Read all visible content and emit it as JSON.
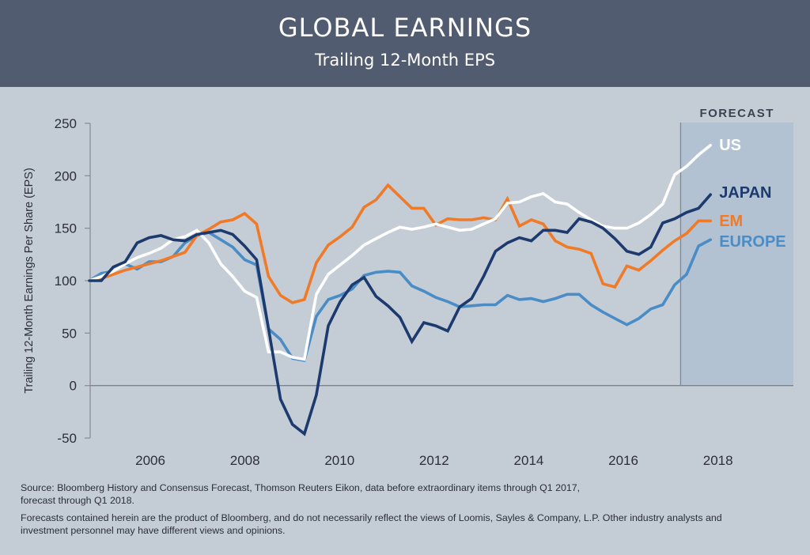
{
  "header": {
    "title": "GLOBAL EARNINGS",
    "subtitle": "Trailing 12-Month EPS"
  },
  "chart_data": {
    "type": "line",
    "title": "GLOBAL EARNINGS",
    "subtitle": "Trailing 12-Month EPS",
    "ylabel": "Trailing 12-Month Earnings Per Share (EPS)",
    "xlabel": "",
    "ylim": [
      -50,
      250
    ],
    "yticks": [
      -50,
      0,
      50,
      100,
      150,
      200,
      250
    ],
    "xtick_labels": [
      "2006",
      "2008",
      "2010",
      "2012",
      "2014",
      "2016",
      "2018"
    ],
    "grid": false,
    "forecast_label": "FORECAST",
    "forecast_from": 2017.5,
    "x": [
      "2005Q1",
      "2005Q2",
      "2005Q3",
      "2005Q4",
      "2006Q1",
      "2006Q2",
      "2006Q3",
      "2006Q4",
      "2007Q1",
      "2007Q2",
      "2007Q3",
      "2007Q4",
      "2008Q1",
      "2008Q2",
      "2008Q3",
      "2008Q4",
      "2009Q1",
      "2009Q2",
      "2009Q3",
      "2009Q4",
      "2010Q1",
      "2010Q2",
      "2010Q3",
      "2010Q4",
      "2011Q1",
      "2011Q2",
      "2011Q3",
      "2011Q4",
      "2012Q1",
      "2012Q2",
      "2012Q3",
      "2012Q4",
      "2013Q1",
      "2013Q2",
      "2013Q3",
      "2013Q4",
      "2014Q1",
      "2014Q2",
      "2014Q3",
      "2014Q4",
      "2015Q1",
      "2015Q2",
      "2015Q3",
      "2015Q4",
      "2016Q1",
      "2016Q2",
      "2016Q3",
      "2016Q4",
      "2017Q1",
      "2017Q2",
      "2017Q3",
      "2017Q4",
      "2018Q1"
    ],
    "series": [
      {
        "name": "US",
        "color": "#ffffff",
        "values": [
          100,
          104,
          109,
          116,
          122,
          126,
          131,
          139,
          142,
          148,
          136,
          116,
          104,
          90,
          84,
          32,
          32,
          27,
          25,
          87,
          106,
          115,
          124,
          134,
          140,
          146,
          151,
          149,
          151,
          154,
          151,
          148,
          149,
          154,
          159,
          174,
          175,
          180,
          183,
          175,
          173,
          165,
          158,
          152,
          150,
          150,
          155,
          163,
          173,
          201,
          209,
          220,
          229
        ]
      },
      {
        "name": "JAPAN",
        "color": "#1d3a6e",
        "values": [
          100,
          100,
          113,
          118,
          136,
          141,
          143,
          139,
          138,
          144,
          146,
          148,
          144,
          133,
          120,
          54,
          -13,
          -37,
          -46,
          -9,
          57,
          80,
          96,
          103,
          85,
          76,
          65,
          42,
          60,
          57,
          52,
          75,
          83,
          104,
          128,
          136,
          141,
          138,
          148,
          148,
          146,
          159,
          156,
          150,
          140,
          128,
          125,
          132,
          155,
          159,
          165,
          169,
          182
        ]
      },
      {
        "name": "EM",
        "color": "#ef7a28",
        "values": [
          100,
          102,
          106,
          110,
          113,
          116,
          119,
          123,
          127,
          143,
          149,
          156,
          158,
          164,
          154,
          104,
          86,
          79,
          82,
          117,
          134,
          142,
          151,
          170,
          177,
          191,
          180,
          169,
          169,
          153,
          159,
          158,
          158,
          160,
          158,
          178,
          152,
          158,
          154,
          138,
          132,
          130,
          126,
          97,
          94,
          114,
          110,
          119,
          129,
          138,
          145,
          157,
          157
        ]
      },
      {
        "name": "EUROPE",
        "color": "#4a8cc6",
        "values": [
          100,
          107,
          109,
          116,
          111,
          118,
          118,
          123,
          136,
          143,
          146,
          139,
          132,
          120,
          115,
          54,
          44,
          26,
          24,
          66,
          82,
          86,
          92,
          105,
          108,
          109,
          108,
          95,
          90,
          84,
          80,
          75,
          76,
          77,
          77,
          86,
          82,
          83,
          80,
          83,
          87,
          87,
          77,
          70,
          64,
          58,
          64,
          73,
          77,
          96,
          106,
          133,
          139
        ]
      }
    ]
  },
  "notes": {
    "source_line1": "Source: Bloomberg History and Consensus Forecast, Thomson Reuters Eikon, data before extraordinary items through Q1 2017,",
    "source_line2": "forecast through Q1 2018.",
    "disclaimer_line1": "Forecasts contained herein are the product of Bloomberg, and do not necessarily reflect the views of Loomis, Sayles & Company, L.P. Other industry analysts and",
    "disclaimer_line2": "investment personnel may have different views and opinions."
  }
}
